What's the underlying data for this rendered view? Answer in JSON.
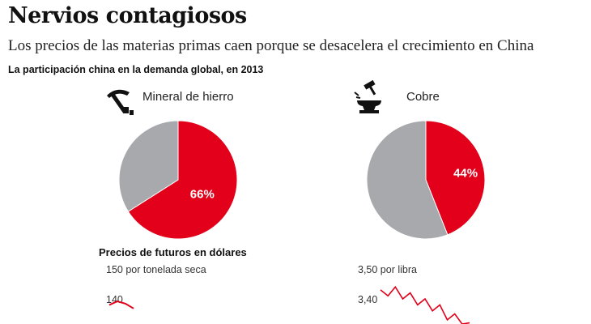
{
  "header": {
    "title": "Nervios contagiosos",
    "subtitle": "Los precios de las materias primas caen porque se desacelera el crecimiento en China",
    "section_label": "La participación china en la demanda global, en 2013"
  },
  "colors": {
    "china": "#e2001a",
    "rest": "#a7a9ac",
    "line": "#e2001a"
  },
  "icons": {
    "iron": "pickaxe-icon",
    "copper": "anvil-hammer-icon"
  },
  "futures": {
    "title": "Precios de futuros en dólares"
  },
  "chart_data": [
    {
      "type": "pie",
      "title": "Mineral de hierro",
      "slices": [
        {
          "value": 66,
          "label": "66%"
        },
        {
          "value": 34,
          "label": ""
        }
      ]
    },
    {
      "type": "pie",
      "title": "Cobre",
      "slices": [
        {
          "value": 44,
          "label": "44%"
        },
        {
          "value": 56,
          "label": ""
        }
      ]
    },
    {
      "type": "line",
      "unit": "por tonelada seca",
      "y_ticks": [
        {
          "value": 150,
          "label": "150 por tonelada seca"
        },
        {
          "value": 140,
          "label": "140"
        }
      ],
      "values": [
        138,
        139.2,
        138.4,
        136.8
      ]
    },
    {
      "type": "line",
      "unit": "por libra",
      "y_ticks": [
        {
          "value": 3.5,
          "label": "3,50 por libra"
        },
        {
          "value": 3.4,
          "label": "3,40"
        }
      ],
      "values": [
        3.43,
        3.41,
        3.44,
        3.4,
        3.42,
        3.38,
        3.4,
        3.36,
        3.38,
        3.33,
        3.35,
        3.3,
        3.32
      ]
    }
  ]
}
